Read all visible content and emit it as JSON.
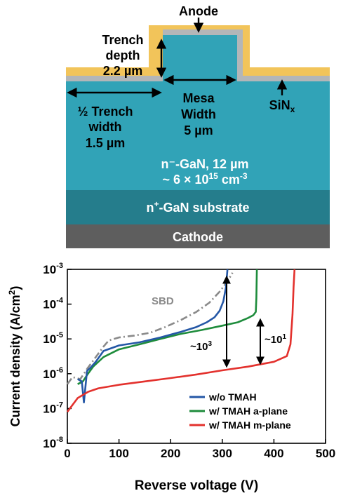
{
  "device": {
    "anode_label": "Anode",
    "trench_depth": [
      "Trench",
      "depth",
      "2.2 µm"
    ],
    "half_trench_width": [
      "½ Trench",
      "width",
      "1.5 µm"
    ],
    "mesa_width": [
      "Mesa",
      "Width",
      "5 µm"
    ],
    "sinx_main": "SiN",
    "sinx_sub": "x",
    "drift_line1": "n⁻-GaN, 12 µm",
    "drift_line2_prefix": "~ 6 × 10",
    "drift_line2_exp": "15",
    "drift_line2_unit": " cm",
    "drift_line2_unit_exp": "-3",
    "substrate_prefix": "n",
    "substrate_sup": "+",
    "substrate_rest": "-GaN substrate",
    "cathode_label": "Cathode",
    "colors": {
      "anode_metal": "#F2C45A",
      "sinx": "#B3B6B8",
      "drift": "#31A3B7",
      "substrate": "#257D8C",
      "cathode": "#5E5E5E"
    }
  },
  "chart_data": {
    "type": "line",
    "xlabel": "Reverse voltage (V)",
    "ylabel_main": "Current density (A/cm",
    "ylabel_sup": "2",
    "ylabel_end": ")",
    "xlim": [
      0,
      500
    ],
    "ylim_log10": [
      -8,
      -3
    ],
    "log_y": true,
    "x_ticks": [
      0,
      100,
      200,
      300,
      400,
      500
    ],
    "y_ticks": [
      {
        "base": "10",
        "exp": "-3"
      },
      {
        "base": "10",
        "exp": "-4"
      },
      {
        "base": "10",
        "exp": "-5"
      },
      {
        "base": "10",
        "exp": "-6"
      },
      {
        "base": "10",
        "exp": "-7"
      },
      {
        "base": "10",
        "exp": "-8"
      }
    ],
    "series": [
      {
        "name": "w/o TMAH",
        "color": "#2457A6",
        "points": [
          [
            20,
            7e-07
          ],
          [
            28,
            6e-07
          ],
          [
            32,
            1.5e-07
          ],
          [
            38,
            1.2e-06
          ],
          [
            45,
            1.5e-06
          ],
          [
            55,
            2.2e-06
          ],
          [
            70,
            4.5e-06
          ],
          [
            100,
            6.5e-06
          ],
          [
            140,
            8e-06
          ],
          [
            180,
            1.1e-05
          ],
          [
            220,
            1.6e-05
          ],
          [
            250,
            2.2e-05
          ],
          [
            270,
            3e-05
          ],
          [
            285,
            4.2e-05
          ],
          [
            295,
            6.5e-05
          ],
          [
            302,
            0.00012
          ],
          [
            307,
            0.0003
          ],
          [
            310,
            0.001
          ]
        ]
      },
      {
        "name": "w/ TMAH a-plane",
        "color": "#1E8C3C",
        "points": [
          [
            20,
            5e-07
          ],
          [
            30,
            6e-07
          ],
          [
            40,
            1e-06
          ],
          [
            50,
            1.6e-06
          ],
          [
            70,
            3e-06
          ],
          [
            100,
            5e-06
          ],
          [
            140,
            7e-06
          ],
          [
            180,
            1e-05
          ],
          [
            220,
            1.4e-05
          ],
          [
            260,
            1.8e-05
          ],
          [
            300,
            2.4e-05
          ],
          [
            330,
            3e-05
          ],
          [
            350,
            4e-05
          ],
          [
            360,
            4.8e-05
          ],
          [
            365,
            6e-05
          ],
          [
            366,
            0.00015
          ],
          [
            367,
            0.001
          ]
        ]
      },
      {
        "name": "w/ TMAH m-plane",
        "color": "#E3312D",
        "points": [
          [
            0,
            8e-08
          ],
          [
            20,
            2e-07
          ],
          [
            40,
            3e-07
          ],
          [
            60,
            3.8e-07
          ],
          [
            100,
            4.8e-07
          ],
          [
            150,
            6e-07
          ],
          [
            200,
            7.5e-07
          ],
          [
            250,
            9.5e-07
          ],
          [
            300,
            1.25e-06
          ],
          [
            350,
            1.6e-06
          ],
          [
            400,
            2.2e-06
          ],
          [
            425,
            3.2e-06
          ],
          [
            432,
            7e-06
          ],
          [
            436,
            5e-05
          ],
          [
            438,
            0.0003
          ],
          [
            440,
            0.001
          ]
        ]
      },
      {
        "name": "SBD",
        "color": "#8A8A8A",
        "dash": true,
        "points": [
          [
            0,
            5e-07
          ],
          [
            10,
            8e-07
          ],
          [
            25,
            7e-07
          ],
          [
            40,
            1.5e-06
          ],
          [
            55,
            3e-06
          ],
          [
            70,
            6e-06
          ],
          [
            80,
            9e-06
          ],
          [
            100,
            1.1e-05
          ],
          [
            130,
            1.25e-05
          ],
          [
            160,
            1.5e-05
          ],
          [
            190,
            2.2e-05
          ],
          [
            220,
            3.5e-05
          ],
          [
            250,
            6e-05
          ],
          [
            275,
            0.00011
          ],
          [
            295,
            0.00023
          ],
          [
            310,
            0.00045
          ],
          [
            320,
            0.0008
          ]
        ]
      }
    ],
    "annotations": {
      "sbd": "SBD",
      "ratio1_base": "~10",
      "ratio1_exp": "3",
      "ratio2_base": "~10",
      "ratio2_exp": "1"
    },
    "legend_position": "bottom-right"
  }
}
